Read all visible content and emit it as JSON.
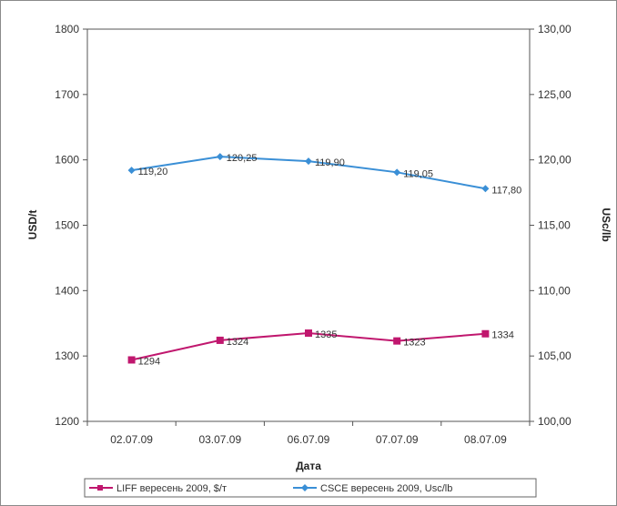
{
  "chart_data": {
    "type": "line",
    "categories": [
      "02.07.09",
      "03.07.09",
      "06.07.09",
      "07.07.09",
      "08.07.09"
    ],
    "xlabel": "Дата",
    "ylabel": "USD/t",
    "y2label": "USc/lb",
    "ylim": [
      1200,
      1800
    ],
    "y2lim": [
      100,
      130
    ],
    "yticks": [
      "1200",
      "1300",
      "1400",
      "1500",
      "1600",
      "1700",
      "1800"
    ],
    "y2ticks": [
      "100,00",
      "105,00",
      "110,00",
      "115,00",
      "120,00",
      "125,00",
      "130,00"
    ],
    "grid": false,
    "legend_position": "bottom",
    "series": [
      {
        "name": "LIFF вересень 2009, $/т",
        "axis": "left",
        "color": "#c0176e",
        "marker": "square",
        "values": [
          1294,
          1324,
          1335,
          1323,
          1334
        ],
        "labels": [
          "1294",
          "1324",
          "1335",
          "1323",
          "1334"
        ]
      },
      {
        "name": "CSCE вересень 2009, Usc/lb",
        "axis": "right",
        "color": "#3a8fd6",
        "marker": "diamond",
        "values": [
          119.2,
          120.25,
          119.9,
          119.05,
          117.8
        ],
        "labels": [
          "119,20",
          "120,25",
          "119,90",
          "119,05",
          "117,80"
        ]
      }
    ]
  }
}
